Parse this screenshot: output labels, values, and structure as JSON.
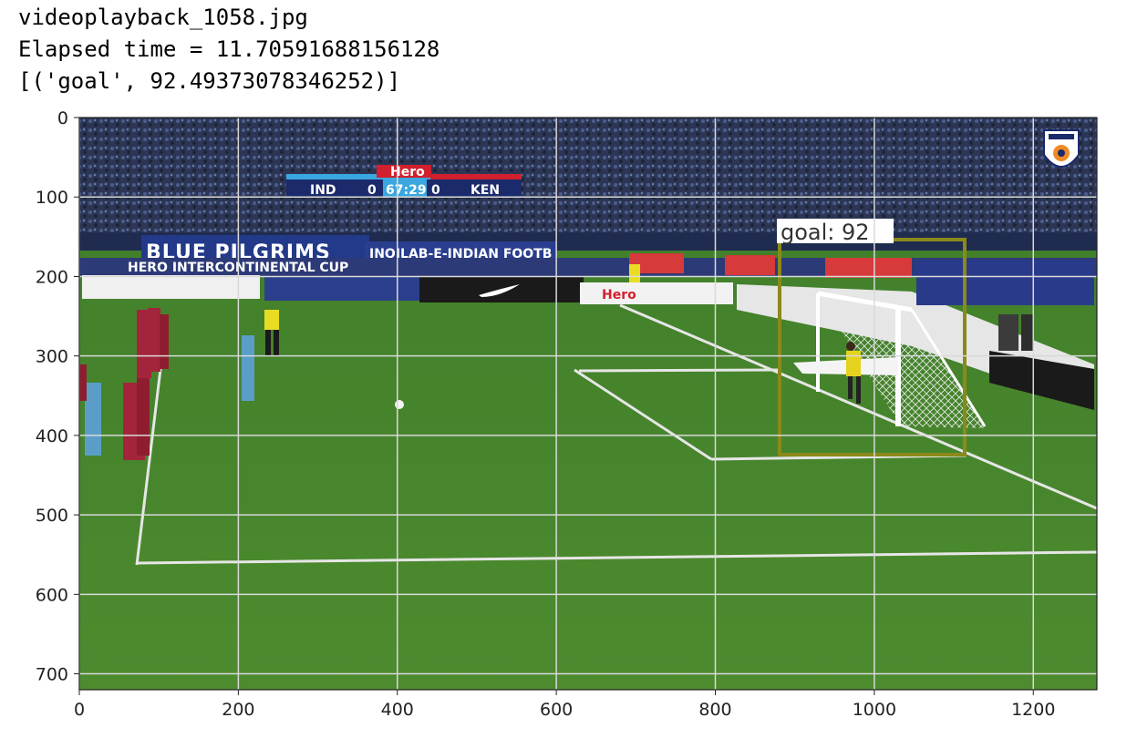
{
  "output": {
    "filename": "videoplayback_1058.jpg",
    "elapsed": "Elapsed time = 11.70591688156128",
    "prediction": "[('goal', 92.49373078346252)]"
  },
  "axes": {
    "x_ticks": [
      "0",
      "200",
      "400",
      "600",
      "800",
      "1000",
      "1200"
    ],
    "y_ticks": [
      "0",
      "100",
      "200",
      "300",
      "400",
      "500",
      "600",
      "700"
    ],
    "grid": true,
    "xlim": [
      0,
      1280
    ],
    "ylim": [
      720,
      0
    ]
  },
  "scoreboard": {
    "sponsor": "Hero",
    "home_team": "IND",
    "home_score": "0",
    "clock": "67:29",
    "away_score": "0",
    "away_team": "KEN"
  },
  "detection": {
    "label": "goal: 92",
    "box_color": "#8a8a1a"
  },
  "broadcast": {
    "banner_text": "BLUE PILGRIMS",
    "banner_text2": "INQILAB-E-INDIAN FOOTB",
    "cup_text": "HERO INTERCONTINENTAL CUP",
    "ad_sponsor": "Hero"
  },
  "colors": {
    "grid": "#d9d9d9",
    "pitch": "#4e8a2e",
    "stands": "#2a3550"
  }
}
